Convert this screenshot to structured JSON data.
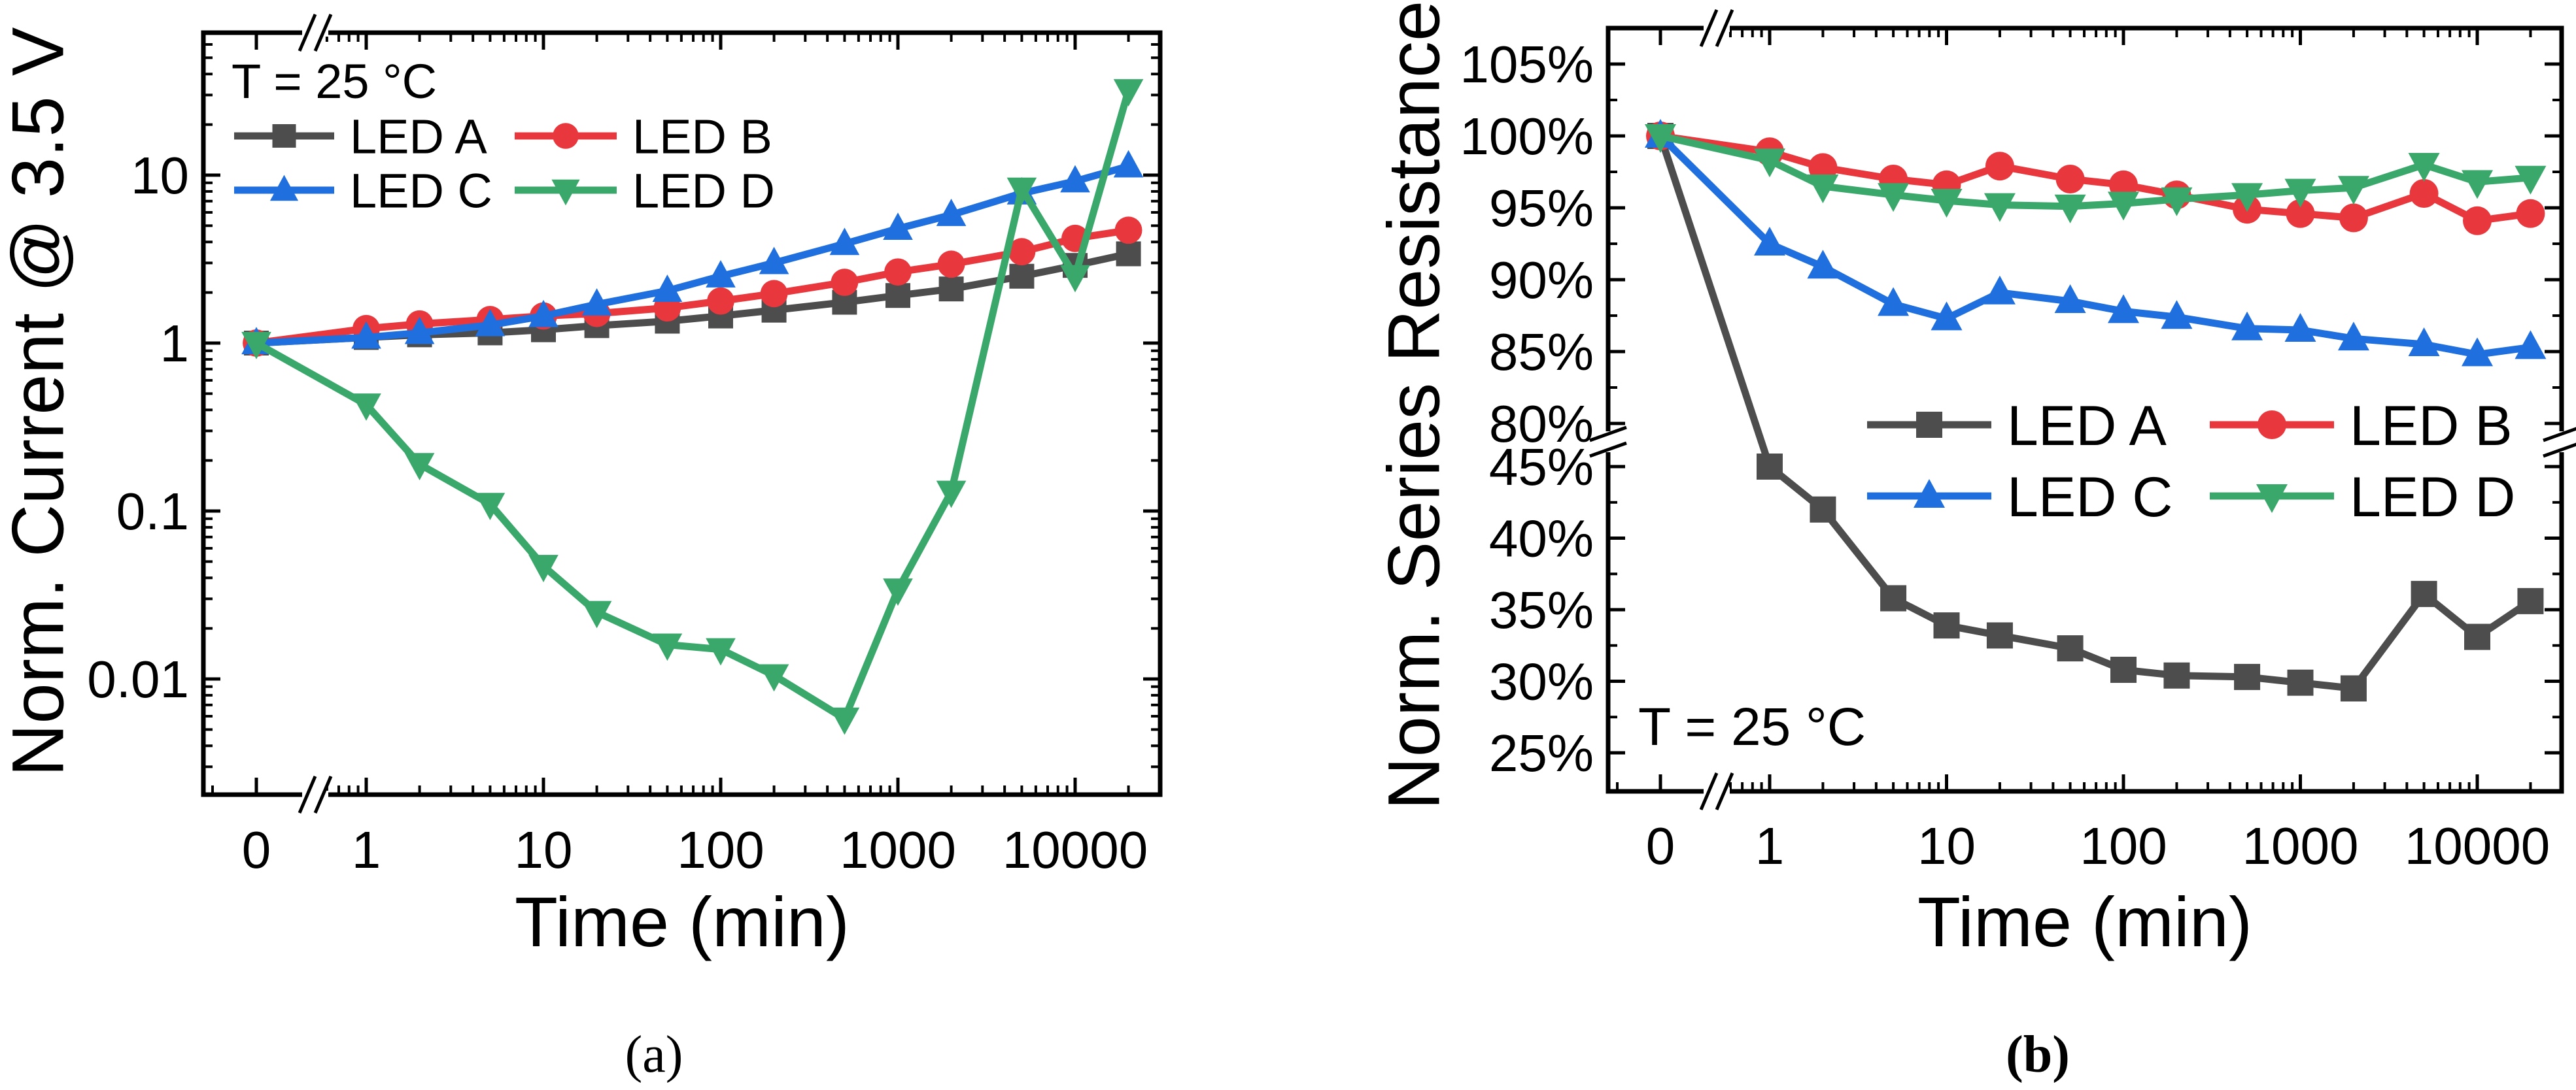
{
  "chart_data": [
    {
      "id": "a",
      "type": "line",
      "caption": "(a)",
      "title": "",
      "xlabel": "Time (min)",
      "ylabel": "Norm. Current @ 3.5 V",
      "xscale": "log with break (0 shown separately)",
      "yscale": "log",
      "annotation": "T = 25 °C",
      "x_ticks": [
        "0",
        "1",
        "10",
        "100",
        "1000",
        "10000"
      ],
      "y_ticks": [
        "0.01",
        "0.1",
        "1",
        "10"
      ],
      "ylim": [
        0.0045,
        80
      ],
      "legend": "top-left",
      "x": [
        0,
        1,
        2,
        5,
        10,
        20,
        50,
        100,
        200,
        500,
        1000,
        2000,
        5000,
        10000,
        20000
      ],
      "series": [
        {
          "name": "LED A",
          "color": "#4d4d4d",
          "marker": "square",
          "values": [
            1,
            1.08,
            1.12,
            1.15,
            1.2,
            1.27,
            1.35,
            1.45,
            1.57,
            1.75,
            1.92,
            2.1,
            2.5,
            2.9,
            3.4
          ]
        },
        {
          "name": "LED B",
          "color": "#e8383d",
          "marker": "circle",
          "values": [
            1,
            1.22,
            1.3,
            1.38,
            1.45,
            1.5,
            1.62,
            1.78,
            1.97,
            2.3,
            2.65,
            2.95,
            3.5,
            4.2,
            4.7
          ]
        },
        {
          "name": "LED C",
          "color": "#1f6fde",
          "marker": "triangle-up",
          "values": [
            1,
            1.08,
            1.15,
            1.28,
            1.45,
            1.7,
            2.05,
            2.5,
            3.0,
            3.9,
            4.8,
            5.8,
            7.8,
            9.2,
            11.3
          ]
        },
        {
          "name": "LED D",
          "color": "#3aa86b",
          "marker": "triangle-down",
          "values": [
            1,
            0.43,
            0.19,
            0.11,
            0.047,
            0.025,
            0.016,
            0.015,
            0.0105,
            0.0058,
            0.034,
            0.13,
            8.3,
            2.5,
            32
          ]
        }
      ]
    },
    {
      "id": "b",
      "type": "line",
      "caption": "(b)",
      "title": "",
      "xlabel": "Time (min)",
      "ylabel": "Norm. Series Resistance",
      "xscale": "log with break (0 shown separately)",
      "yscale": "linear with break",
      "annotation": "T = 25 °C",
      "x_ticks": [
        "0",
        "1",
        "10",
        "100",
        "1000",
        "10000"
      ],
      "y_ticks_upper": [
        "80%",
        "85%",
        "90%",
        "95%",
        "100%",
        "105%"
      ],
      "y_ticks_lower": [
        "25%",
        "30%",
        "35%",
        "40%",
        "45%"
      ],
      "ylim_upper": [
        78.7,
        107.4
      ],
      "ylim_lower": [
        22.5,
        46.7
      ],
      "legend": "center-right",
      "x": [
        0,
        1,
        2,
        5,
        10,
        20,
        50,
        100,
        200,
        500,
        1000,
        2000,
        5000,
        10000,
        20000
      ],
      "series": [
        {
          "name": "LED A",
          "color": "#4d4d4d",
          "marker": "square",
          "values": [
            100,
            45,
            42,
            35.8,
            33.9,
            33.2,
            32.3,
            30.8,
            30.4,
            30.3,
            29.9,
            29.5,
            36.1,
            33.1,
            35.6
          ]
        },
        {
          "name": "LED B",
          "color": "#e8383d",
          "marker": "circle",
          "values": [
            100,
            98.9,
            97.8,
            97.0,
            96.6,
            97.9,
            97.0,
            96.6,
            95.9,
            94.9,
            94.6,
            94.3,
            96.0,
            94.1,
            94.6
          ]
        },
        {
          "name": "LED C",
          "color": "#1f6fde",
          "marker": "triangle-up",
          "values": [
            100,
            92.5,
            90.9,
            88.3,
            87.3,
            89.1,
            88.5,
            87.8,
            87.4,
            86.6,
            86.5,
            85.9,
            85.5,
            84.8,
            85.3
          ]
        },
        {
          "name": "LED D",
          "color": "#3aa86b",
          "marker": "triangle-down",
          "values": [
            100,
            98.3,
            96.5,
            95.9,
            95.5,
            95.2,
            95.1,
            95.3,
            95.6,
            95.9,
            96.2,
            96.4,
            98.0,
            96.8,
            97.1
          ]
        }
      ]
    }
  ]
}
